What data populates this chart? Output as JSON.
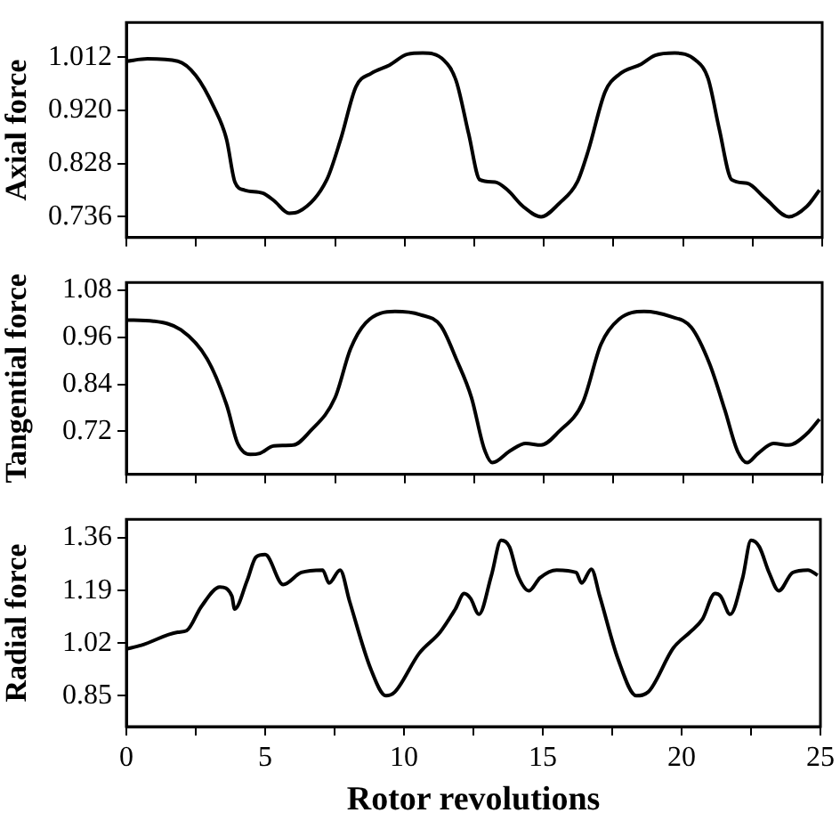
{
  "chart_data": [
    {
      "type": "line",
      "ylabel": "Axial force",
      "xlim": [
        0,
        25
      ],
      "ylim": [
        0.7,
        1.072
      ],
      "xticks": [
        0,
        {
          "value": 2.5,
          "label": null
        },
        5,
        {
          "value": 7.5,
          "label": null
        },
        10,
        {
          "value": 12.5,
          "label": null
        },
        15,
        {
          "value": 17.5,
          "label": null
        },
        20,
        {
          "value": 22.5,
          "label": null
        },
        25
      ],
      "yticks": [
        0.736,
        0.828,
        {
          "value": 0.92,
          "label": "0.920"
        },
        1.012
      ],
      "tick_labels": "y",
      "grid": false,
      "legend": false,
      "marker": "none",
      "line_style": "solid",
      "series": [
        {
          "color": "#000000",
          "x": [
            0,
            0.76,
            1.85,
            2.5,
            3.15,
            3.6,
            3.9,
            4.25,
            4.9,
            5.3,
            5.85,
            6.2,
            7.2,
            7.7,
            8.25,
            8.8,
            9.45,
            10.1,
            10.65,
            11.4,
            11.85,
            12.3,
            12.7,
            13.25,
            13.7,
            14.25,
            14.9,
            15.55,
            16.2,
            16.6,
            17.2,
            17.7,
            18.5,
            19.0,
            19.7,
            20.45,
            20.9,
            21.3,
            21.75,
            22.3,
            22.95,
            23.8,
            24.45,
            24.9
          ],
          "values": [
            1.005,
            1.009,
            1.005,
            0.98,
            0.925,
            0.87,
            0.796,
            0.782,
            0.777,
            0.764,
            0.742,
            0.745,
            0.8,
            0.87,
            0.961,
            0.984,
            0.998,
            1.017,
            1.019,
            1.007,
            0.971,
            0.879,
            0.8,
            0.796,
            0.782,
            0.754,
            0.736,
            0.759,
            0.796,
            0.851,
            0.952,
            0.982,
            1.0,
            1.015,
            1.019,
            1.007,
            0.975,
            0.888,
            0.8,
            0.794,
            0.768,
            0.736,
            0.754,
            0.782
          ]
        }
      ]
    },
    {
      "type": "line",
      "ylabel": "Tangential force",
      "xlim": [
        0,
        25
      ],
      "ylim": [
        0.61,
        1.1
      ],
      "xticks": [
        0,
        {
          "value": 2.5,
          "label": null
        },
        5,
        {
          "value": 7.5,
          "label": null
        },
        10,
        {
          "value": 12.5,
          "label": null
        },
        15,
        {
          "value": 17.5,
          "label": null
        },
        20,
        {
          "value": 22.5,
          "label": null
        },
        25
      ],
      "yticks": [
        0.72,
        0.84,
        0.96,
        1.08
      ],
      "tick_labels": "y",
      "grid": false,
      "legend": false,
      "marker": "none",
      "line_style": "solid",
      "series": [
        {
          "color": "#000000",
          "x": [
            0,
            0.98,
            1.96,
            2.9,
            3.6,
            4.0,
            4.45,
            4.8,
            5.3,
            6.0,
            6.6,
            7.5,
            8.05,
            8.6,
            9.65,
            10.55,
            11.3,
            11.85,
            12.4,
            12.85,
            13.15,
            13.8,
            14.35,
            14.9,
            15.55,
            16.4,
            17.05,
            17.7,
            18.6,
            19.55,
            20.3,
            20.95,
            21.5,
            21.95,
            22.3,
            22.7,
            23.25,
            23.8,
            24.45,
            24.9
          ],
          "values": [
            1.004,
            1.001,
            0.979,
            0.905,
            0.788,
            0.689,
            0.661,
            0.664,
            0.683,
            0.685,
            0.72,
            0.806,
            0.93,
            0.997,
            1.026,
            1.018,
            0.989,
            0.905,
            0.806,
            0.677,
            0.64,
            0.671,
            0.689,
            0.685,
            0.72,
            0.794,
            0.942,
            1.006,
            1.026,
            1.013,
            0.985,
            0.893,
            0.775,
            0.671,
            0.64,
            0.664,
            0.689,
            0.685,
            0.714,
            0.751
          ]
        }
      ]
    },
    {
      "type": "line",
      "ylabel": "Radial force",
      "xlabel": "Rotor revolutions",
      "xlim": [
        0,
        25
      ],
      "ylim": [
        0.75,
        1.42
      ],
      "xticks": [
        0,
        {
          "value": 2.5,
          "label": null
        },
        5,
        {
          "value": 7.5,
          "label": null
        },
        10,
        {
          "value": 12.5,
          "label": null
        },
        15,
        {
          "value": 17.5,
          "label": null
        },
        20,
        {
          "value": 22.5,
          "label": null
        },
        25
      ],
      "yticks": [
        0.85,
        1.02,
        1.19,
        1.36
      ],
      "grid": false,
      "legend": false,
      "marker": "none",
      "line_style": "solid",
      "series": [
        {
          "color": "#000000",
          "x": [
            0,
            0.54,
            1.85,
            2.17,
            2.7,
            3.37,
            3.8,
            3.9,
            4.35,
            4.67,
            5.0,
            5.65,
            6.3,
            7.07,
            7.3,
            7.7,
            8.04,
            8.8,
            9.35,
            9.67,
            10.55,
            11.3,
            11.85,
            12.17,
            12.4,
            12.7,
            13.15,
            13.5,
            13.8,
            14.1,
            14.5,
            14.9,
            15.5,
            16.2,
            16.4,
            16.75,
            17.05,
            17.7,
            18.37,
            18.8,
            19.7,
            20.3,
            20.75,
            21.2,
            21.4,
            21.75,
            22.2,
            22.5,
            22.8,
            23.15,
            23.5,
            24.0,
            24.55,
            24.9
          ],
          "values": [
            1.001,
            1.013,
            1.055,
            1.06,
            1.138,
            1.201,
            1.172,
            1.13,
            1.222,
            1.298,
            1.306,
            1.209,
            1.248,
            1.256,
            1.214,
            1.256,
            1.155,
            0.937,
            0.85,
            0.862,
            0.987,
            1.055,
            1.13,
            1.18,
            1.164,
            1.113,
            1.239,
            1.352,
            1.331,
            1.239,
            1.189,
            1.231,
            1.256,
            1.248,
            1.214,
            1.259,
            1.172,
            0.971,
            0.85,
            0.862,
            1.004,
            1.055,
            1.097,
            1.18,
            1.172,
            1.113,
            1.231,
            1.352,
            1.331,
            1.248,
            1.189,
            1.248,
            1.256,
            1.239
          ]
        }
      ]
    }
  ]
}
